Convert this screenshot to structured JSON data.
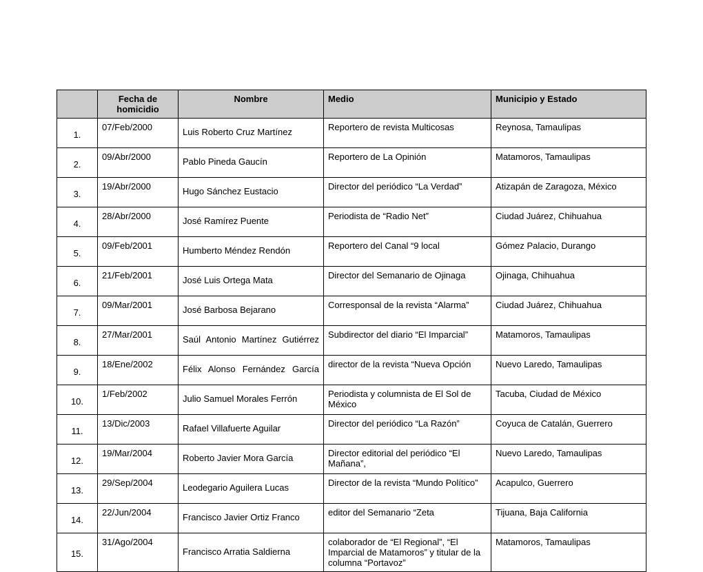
{
  "table": {
    "columns": [
      "",
      "Fecha de homicidio",
      "Nombre",
      "Medio",
      "Municipio y Estado"
    ],
    "rows": [
      {
        "num": "1.",
        "date": "07/Feb/2000",
        "name": "Luis Roberto Cruz Martínez",
        "medio": "Reportero de revista Multicosas",
        "loc": "Reynosa,  Tamaulipas"
      },
      {
        "num": "2.",
        "date": "09/Abr/2000",
        "name": "Pablo Pineda Gaucín",
        "medio": "Reportero de La Opinión",
        "loc": "Matamoros,  Tamaulipas"
      },
      {
        "num": "3.",
        "date": "19/Abr/2000",
        "name": "Hugo Sánchez Eustacio",
        "medio": "Director del periódico “La Verdad”",
        "loc": "Atizapán de Zaragoza,   México"
      },
      {
        "num": "4.",
        "date": "28/Abr/2000",
        "name": "José Ramírez Puente",
        "medio": "Periodista de “Radio Net”",
        "loc": "Ciudad Juárez,   Chihuahua"
      },
      {
        "num": "5.",
        "date": "09/Feb/2001",
        "name": "Humberto Méndez Rendón",
        "medio": "Reportero del Canal “9 local",
        "loc": "Gómez Palacio,  Durango"
      },
      {
        "num": "6.",
        "date": "21/Feb/2001",
        "name": "José Luis Ortega Mata",
        "medio": "Director del Semanario de Ojinaga",
        "loc": "Ojinaga,  Chihuahua"
      },
      {
        "num": "7.",
        "date": "09/Mar/2001",
        "name": "José Barbosa Bejarano",
        "medio": "Corresponsal de la revista “Alarma”",
        "loc": "Ciudad Juárez,  Chihuahua"
      },
      {
        "num": "8.",
        "date": "27/Mar/2001",
        "name": "Saúl Antonio Martínez Gutiérrez",
        "medio": "Subdirector del diario “El Imparcial”",
        "loc": "Matamoros,  Tamaulipas"
      },
      {
        "num": "9.",
        "date": "18/Ene/2002",
        "name": "Félix Alonso Fernández García",
        "medio": "director de la revista “Nueva Opción",
        "loc": "Nuevo Laredo,  Tamaulipas"
      },
      {
        "num": "10.",
        "date": "1/Feb/2002",
        "name": "Julio Samuel Morales Ferrón",
        "medio": "Periodista y columnista de El Sol de México",
        "loc": "Tacuba, Ciudad de México"
      },
      {
        "num": "11.",
        "date": "13/Dic/2003",
        "name": "Rafael Villafuerte Aguilar",
        "medio": "Director del periódico “La Razón”",
        "loc": "Coyuca de Catalán,  Guerrero"
      },
      {
        "num": "12.",
        "date": "19/Mar/2004",
        "name": "Roberto Javier Mora García",
        "medio": "Director editorial del periódico “El Mañana”,",
        "loc": "Nuevo Laredo,  Tamaulipas"
      },
      {
        "num": "13.",
        "date": "29/Sep/2004",
        "name": "Leodegario Aguilera Lucas",
        "medio": "Director de la revista “Mundo Político”",
        "loc": "Acapulco,  Guerrero"
      },
      {
        "num": "14.",
        "date": "22/Jun/2004",
        "name": "Francisco Javier Ortiz Franco",
        "medio": "editor del Semanario “Zeta",
        "loc": "Tijuana,  Baja California"
      },
      {
        "num": "15.",
        "date": "31/Ago/2004",
        "name": "Francisco Arratia Saldierna",
        "medio": "colaborador de “El Regional”, “El Imparcial de Matamoros” y titular de la columna “Portavoz”",
        "loc": "Matamoros,  Tamaulipas"
      }
    ],
    "justify_name_rows": [
      7,
      8
    ]
  }
}
